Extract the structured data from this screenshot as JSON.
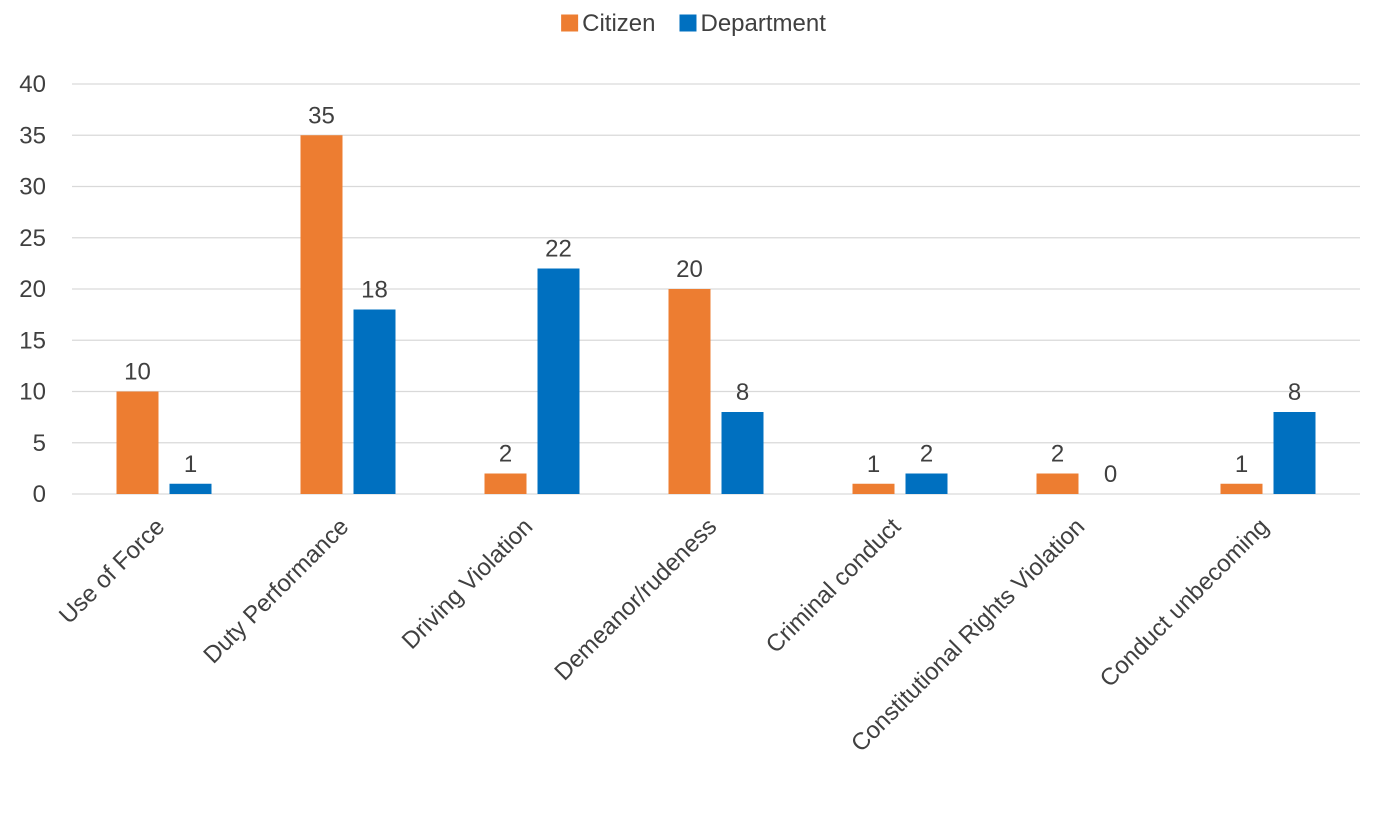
{
  "chart_data": {
    "type": "bar",
    "title": "",
    "xlabel": "",
    "ylabel": "",
    "categories": [
      "Use of Force",
      "Duty Performance",
      "Driving Violation",
      "Demeanor/rudeness",
      "Criminal conduct",
      "Constitutional Rights Violation",
      "Conduct unbecoming"
    ],
    "series": [
      {
        "name": "Citizen",
        "color": "#ed7d31",
        "values": [
          10,
          35,
          2,
          20,
          1,
          2,
          1
        ]
      },
      {
        "name": "Department",
        "color": "#0070c0",
        "values": [
          1,
          18,
          22,
          8,
          2,
          0,
          8
        ]
      }
    ],
    "ylim": [
      0,
      40
    ],
    "yticks": [
      0,
      5,
      10,
      15,
      20,
      25,
      30,
      35,
      40
    ],
    "grid": true,
    "legend_position": "top-center",
    "data_labels": true
  }
}
